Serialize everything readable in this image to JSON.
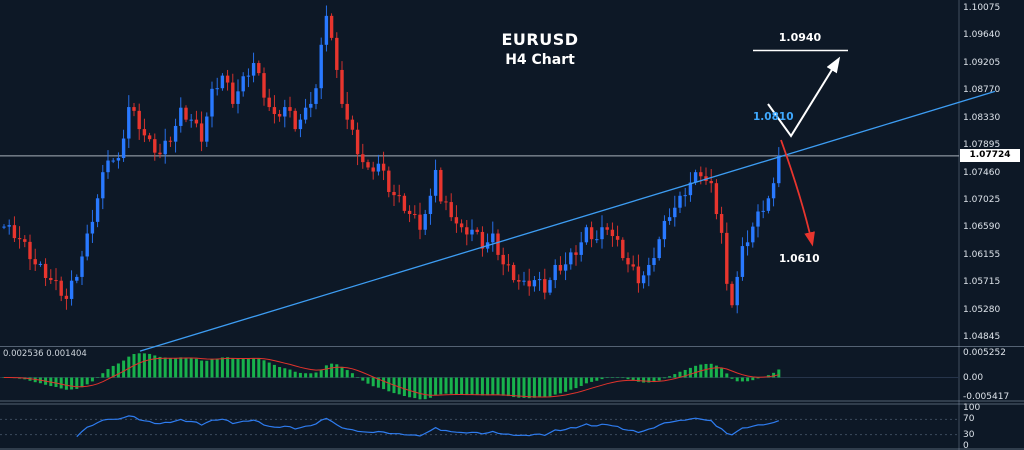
{
  "window": {
    "title": "EURUSD H4 Chart"
  },
  "chart": {
    "symbol_title": "EURUSD",
    "timeframe_title": "H4 Chart"
  },
  "price_axis": {
    "current_price_label": "1.07724",
    "labels": [
      "1.10075",
      "1.09640",
      "1.09205",
      "1.08770",
      "1.08330",
      "1.07895",
      "1.07460",
      "1.07025",
      "1.06590",
      "1.06155",
      "1.05715",
      "1.05280",
      "1.04845"
    ]
  },
  "annotations": {
    "target": {
      "label": "1.0940",
      "price": 1.094
    },
    "entry": {
      "label": "1.0810",
      "price": 1.081
    },
    "stop": {
      "label": "1.0610",
      "price": 1.061
    }
  },
  "macd_panel": {
    "values_label": "0.002536 0.001404",
    "axis_labels": [
      "0.005252",
      "0.00",
      "-0.005417"
    ]
  },
  "rsi_panel": {
    "axis_labels": [
      "100",
      "70",
      "30",
      "0"
    ],
    "levels": [
      70,
      30
    ]
  },
  "colors": {
    "bg": "#0d1826",
    "bull": "#2979ff",
    "bear": "#e8352e",
    "trend": "#3d9df3",
    "macd_green": "#18b24c",
    "macd_signal": "#e0332c",
    "rsi_line": "#2e7cf0",
    "grid": "#8fa0b3",
    "price_line": "#c5cbd4",
    "white": "#ffffff",
    "entry_blue": "#3fa9ff"
  },
  "chart_data": {
    "type": "candlestick",
    "symbol": "EURUSD",
    "timeframe": "H4",
    "title": "EURUSD H4 Chart",
    "ylim": [
      1.04845,
      1.10075
    ],
    "current_price": 1.07724,
    "trendline": {
      "x1": 140,
      "price1": 1.0462,
      "x2": 995,
      "price2": 1.0875
    },
    "closes": [
      1.066,
      1.06623,
      1.06417,
      1.064,
      1.06357,
      1.06083,
      1.06,
      1.06007,
      1.05783,
      1.0575,
      1.0574,
      1.055,
      1.0545,
      1.0574,
      1.058,
      1.06125,
      1.0649,
      1.06675,
      1.0705,
      1.07465,
      1.0765,
      1.0765,
      1.0769,
      1.08,
      1.085,
      1.0844,
      1.0815,
      1.0805,
      1.0799,
      1.07775,
      1.0775,
      1.07965,
      1.0795,
      1.082,
      1.0849,
      1.083,
      1.083,
      1.0824,
      1.0795,
      1.0835,
      1.0879,
      1.088,
      1.09,
      1.0889,
      1.0855,
      1.0875,
      1.0899,
      1.09,
      1.092,
      1.0904,
      1.0865,
      1.085,
      1.0839,
      1.0835,
      1.085,
      1.0844,
      1.0815,
      1.083,
      1.0849,
      1.0855,
      1.088,
      1.0949,
      1.0995,
      1.096,
      1.0909,
      1.0855,
      1.083,
      1.0814,
      1.0775,
      1.07625,
      1.0754,
      1.07475,
      1.076,
      1.0749,
      1.0715,
      1.071,
      1.0709,
      1.0685,
      1.068,
      1.0679,
      1.0655,
      1.068,
      1.0709,
      1.075,
      1.07,
      1.0699,
      1.0675,
      1.0665,
      1.0659,
      1.06475,
      1.0655,
      1.06515,
      1.0625,
      1.0635,
      1.0649,
      1.0615,
      1.06,
      1.0599,
      1.0575,
      1.05725,
      1.0574,
      1.0565,
      1.0575,
      1.05765,
      1.0555,
      1.0575,
      1.0599,
      1.059,
      1.06,
      1.0619,
      1.0615,
      1.0635,
      1.0659,
      1.064,
      1.064,
      1.0659,
      1.0655,
      1.0645,
      1.0639,
      1.061,
      1.06,
      1.05965,
      1.057,
      1.05825,
      1.0599,
      1.061,
      1.064,
      1.0669,
      1.0675,
      1.069,
      1.0709,
      1.071,
      1.073,
      1.07465,
      1.074,
      1.07325,
      1.0729,
      1.068,
      1.065,
      1.0569,
      1.0535,
      1.058,
      1.0629,
      1.0635,
      1.066,
      1.0684,
      1.0685,
      1.0705,
      1.0729,
      1.07724
    ],
    "indicators": [
      {
        "name": "MACD",
        "panel": "middle",
        "current_values": [
          0.002536,
          0.001404
        ],
        "axis_range": [
          -0.005417,
          0.005252
        ]
      },
      {
        "name": "oscillator",
        "panel": "bottom",
        "axis_range": [
          0,
          100
        ],
        "levels": [
          70,
          30
        ]
      }
    ]
  }
}
